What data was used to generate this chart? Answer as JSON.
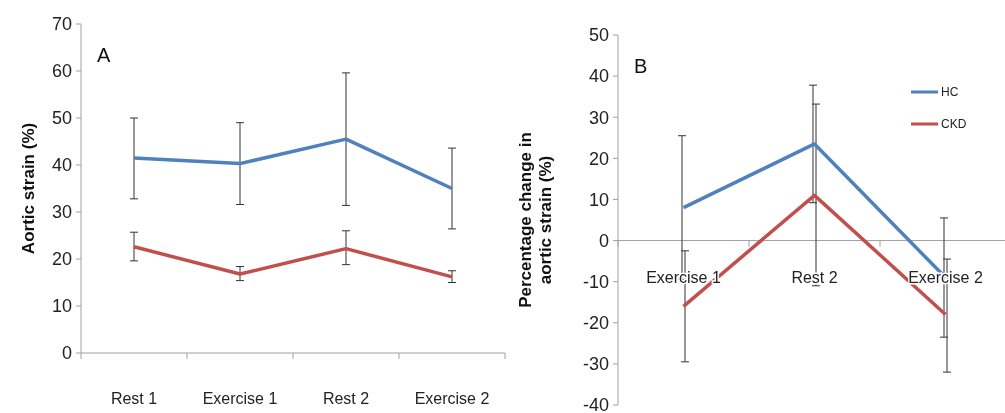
{
  "chart_data": [
    {
      "type": "line",
      "title": "A",
      "ylabel": "Aortic strain (%)",
      "categories": [
        "Rest 1",
        "Exercise 1",
        "Rest 2",
        "Exercise 2"
      ],
      "ylim": [
        0,
        70
      ],
      "yticks": [
        0,
        10,
        20,
        30,
        40,
        50,
        60,
        70
      ],
      "grid": false,
      "legend": false,
      "marker": "none",
      "series": [
        {
          "color": "#4f81bd",
          "values": [
            41.5,
            40.3,
            45.5,
            35
          ],
          "errors": [
            [
              32.8,
              50
            ],
            [
              31.6,
              49
            ],
            [
              31.4,
              59.6
            ],
            [
              26.4,
              43.6
            ]
          ]
        },
        {
          "color": "#c0504d",
          "values": [
            22.6,
            16.8,
            22.2,
            16.2
          ],
          "errors": [
            [
              19.6,
              25.7
            ],
            [
              15.4,
              18.4
            ],
            [
              18.8,
              26
            ],
            [
              15,
              17.5
            ]
          ]
        }
      ]
    },
    {
      "type": "line",
      "title": "B",
      "ylabel": "Percentage change in aortic strain (%)",
      "categories": [
        "Exercise 1",
        "Rest 2",
        "Exercise 2"
      ],
      "ylim": [
        -40,
        50
      ],
      "yticks": [
        -40,
        -30,
        -20,
        -10,
        0,
        10,
        20,
        30,
        40,
        50
      ],
      "grid": false,
      "legend": "top right",
      "marker": "none",
      "series": [
        {
          "name": "HC",
          "color": "#4f81bd",
          "values": [
            8,
            23.5,
            -9
          ],
          "errors": [
            [
              -9.5,
              25.5
            ],
            [
              9.2,
              37.8
            ],
            [
              -23.5,
              5.5
            ]
          ]
        },
        {
          "name": "CKD",
          "color": "#c0504d",
          "values": [
            -16,
            11,
            -18
          ],
          "errors": [
            [
              -29.5,
              -2.5
            ],
            [
              -11,
              33.2
            ],
            [
              -32,
              -4.5
            ]
          ]
        }
      ]
    }
  ]
}
